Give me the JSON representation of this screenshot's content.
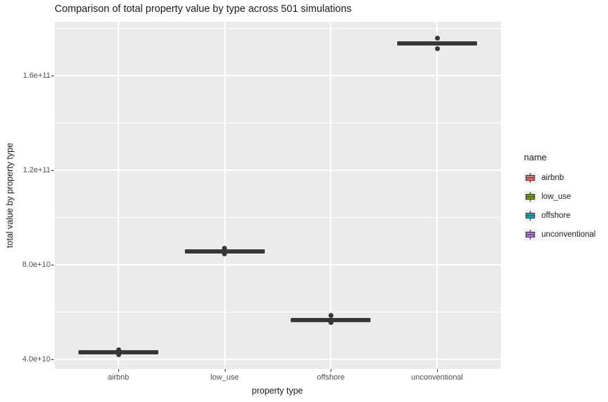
{
  "chart_data": {
    "type": "boxplot",
    "title": "Comparison of total property value by type across 501 simulations",
    "xlabel": "property type",
    "ylabel": "total value by property type",
    "categories": [
      "airbnb",
      "low_use",
      "offshore",
      "unconventional"
    ],
    "series": [
      {
        "name": "airbnb",
        "color": "#F8766D",
        "median": 43000000000,
        "q1": 42100000000,
        "q3": 43900000000,
        "outliers": [
          43900000000,
          41800000000
        ]
      },
      {
        "name": "low_use",
        "color": "#7CAE00",
        "median": 85600000000,
        "q1": 84700000000,
        "q3": 86500000000,
        "outliers": [
          87100000000,
          84600000000
        ]
      },
      {
        "name": "offshore",
        "color": "#00BFC4",
        "median": 56600000000,
        "q1": 55700000000,
        "q3": 57500000000,
        "outliers": [
          58400000000,
          55500000000
        ]
      },
      {
        "name": "unconventional",
        "color": "#C77CFF",
        "median": 173600000000,
        "q1": 172800000000,
        "q3": 174500000000,
        "outliers": [
          175700000000,
          171300000000
        ]
      }
    ],
    "y_ticks": [
      {
        "label": "4.0e+10",
        "value": 40000000000
      },
      {
        "label": "8.0e+10",
        "value": 80000000000
      },
      {
        "label": "1.2e+11",
        "value": 120000000000
      },
      {
        "label": "1.6e+11",
        "value": 160000000000
      }
    ],
    "y_minor_ticks": [
      60000000000,
      100000000000,
      140000000000,
      180000000000
    ],
    "ylim": [
      35850000000,
      182800000000
    ],
    "grid": "on",
    "legend_position": "right",
    "colors": {
      "panel_background": "#EBEBEB",
      "gridline": "#FFFFFF",
      "box_outline": "#373737",
      "tick_label": "#4D4D4D",
      "legend_key_background": "#F2F2F2"
    }
  },
  "legend": {
    "title": "name",
    "items": [
      {
        "label": "airbnb",
        "color": "#F8766D"
      },
      {
        "label": "low_use",
        "color": "#7CAE00"
      },
      {
        "label": "offshore",
        "color": "#00BFC4"
      },
      {
        "label": "unconventional",
        "color": "#C77CFF"
      }
    ]
  }
}
